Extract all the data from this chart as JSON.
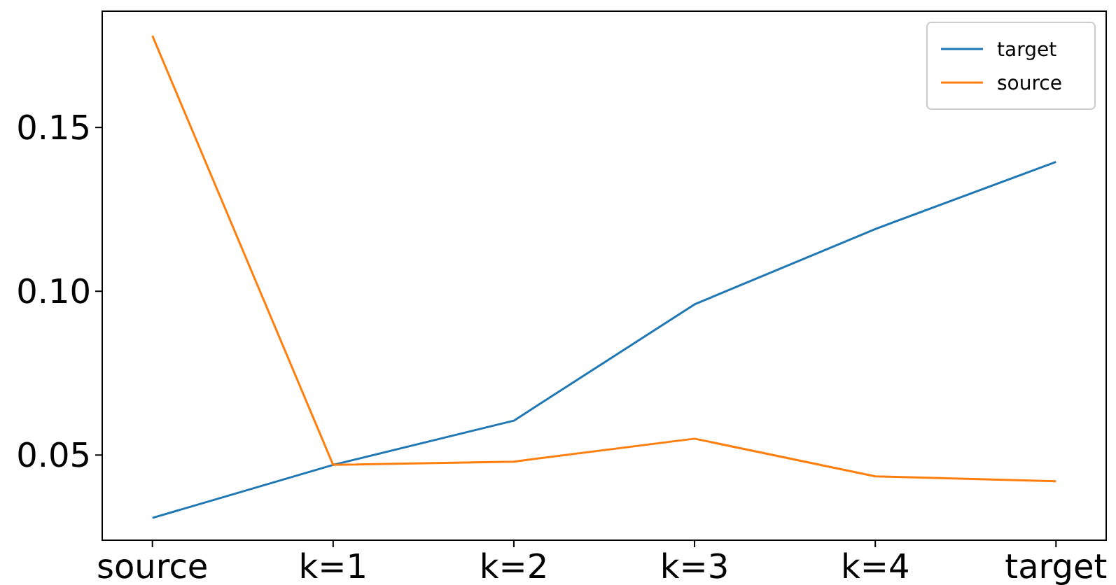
{
  "chart_data": {
    "type": "line",
    "categories": [
      "source",
      "k=1",
      "k=2",
      "k=3",
      "k=4",
      "target"
    ],
    "series": [
      {
        "name": "target",
        "color": "#1f77b4",
        "values": [
          0.0308,
          0.047,
          0.0605,
          0.096,
          0.119,
          0.1395
        ]
      },
      {
        "name": "source",
        "color": "#ff7f0e",
        "values": [
          0.178,
          0.047,
          0.048,
          0.055,
          0.0435,
          0.042
        ]
      }
    ],
    "ylim": [
      0.024,
      0.1855
    ],
    "yticks": [
      {
        "value": 0.05,
        "label": "0.05"
      },
      {
        "value": 0.1,
        "label": "0.10"
      },
      {
        "value": 0.15,
        "label": "0.15"
      }
    ],
    "grid": false,
    "legend": "top right",
    "marker": "none",
    "line_style": "solid"
  }
}
